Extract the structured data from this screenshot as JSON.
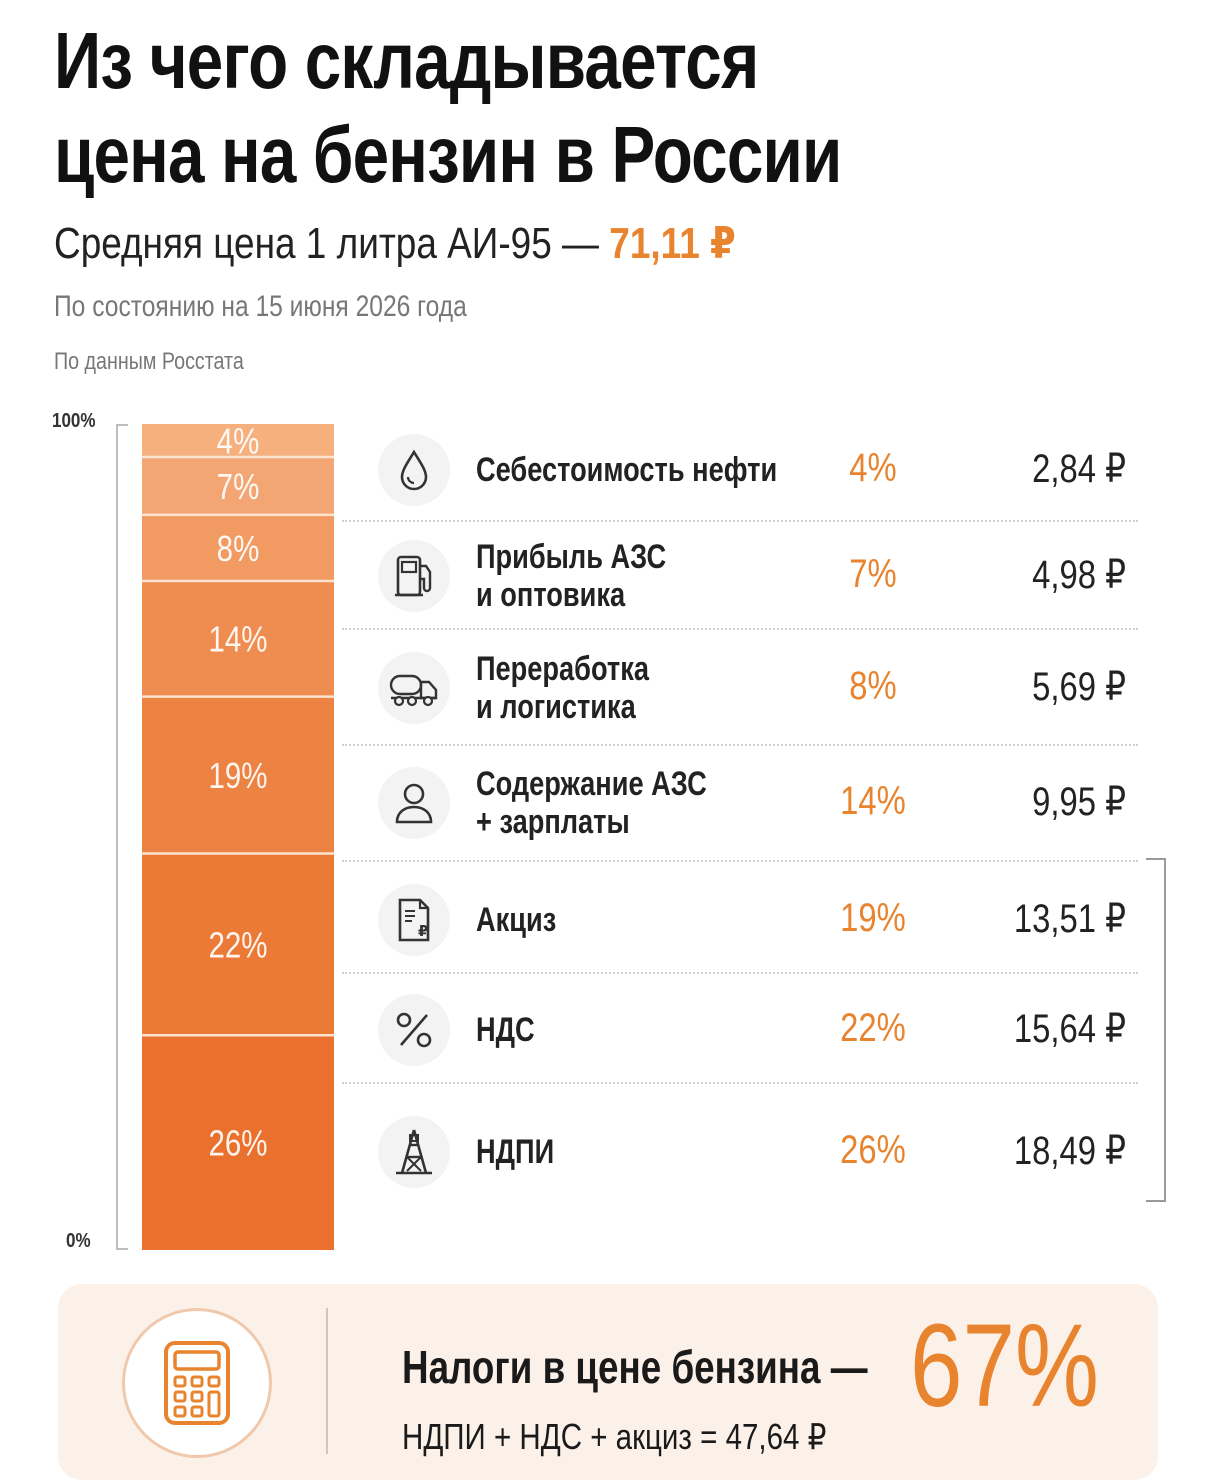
{
  "header": {
    "title_line1": "Из чего складывается",
    "title_line2": "цена на бензин в России",
    "subtitle_prefix": "Средняя цена 1 литра АИ-95 — ",
    "subtitle_price": "71,11 ₽",
    "date_note": "По состоянию на 15 июня 2026 года",
    "source_note": "По данным Росстата"
  },
  "chart_data": {
    "type": "bar",
    "stacked": true,
    "y_axis": {
      "top_label": "100%",
      "bottom_label": "0%",
      "ylim": [
        0,
        100
      ]
    },
    "segments_top_to_bottom": [
      {
        "label": "Себестоимость нефти",
        "percent": 4,
        "percent_label": "4%",
        "value": 2.84,
        "value_label": "2,84 ₽",
        "color": "#f5b07e",
        "icon": "drop-icon"
      },
      {
        "label": "Прибыль АЗС и оптовика",
        "percent": 7,
        "percent_label": "7%",
        "value": 4.98,
        "value_label": "4,98 ₽",
        "color": "#f3a673",
        "icon": "fuel-pump-icon"
      },
      {
        "label": "Переработка и логистика",
        "percent": 8,
        "percent_label": "8%",
        "value": 5.69,
        "value_label": "5,69 ₽",
        "color": "#f19b63",
        "icon": "tanker-truck-icon"
      },
      {
        "label": "Содержание АЗС + зарплаты",
        "percent": 14,
        "percent_label": "14%",
        "value": 9.95,
        "value_label": "9,95 ₽",
        "color": "#ef8d50",
        "icon": "person-icon"
      },
      {
        "label": "Акциз",
        "percent": 19,
        "percent_label": "19%",
        "value": 13.51,
        "value_label": "13,51 ₽",
        "color": "#ed8342",
        "icon": "document-ruble-icon"
      },
      {
        "label": "НДС",
        "percent": 22,
        "percent_label": "22%",
        "value": 15.64,
        "value_label": "15,64 ₽",
        "color": "#eb7a37",
        "icon": "percent-icon"
      },
      {
        "label": "НДПИ",
        "percent": 26,
        "percent_label": "26%",
        "value": 18.49,
        "value_label": "18,49 ₽",
        "color": "#e9712d",
        "icon": "oil-rig-icon"
      }
    ]
  },
  "rows": [
    {
      "line1": "Себестоимость нефти",
      "line2": ""
    },
    {
      "line1": "Прибыль АЗС",
      "line2": "и оптовика"
    },
    {
      "line1": "Переработка",
      "line2": "и логистика"
    },
    {
      "line1": "Содержание АЗС",
      "line2": "+ зарплаты"
    },
    {
      "line1": "Акциз",
      "line2": ""
    },
    {
      "line1": "НДС",
      "line2": ""
    },
    {
      "line1": "НДПИ",
      "line2": ""
    }
  ],
  "footer": {
    "headline": "Налоги в цене бензина —",
    "formula": "НДПИ + НДС + акциз = 47,64 ₽",
    "big_value": "67%",
    "icon": "calculator-icon"
  },
  "colors": {
    "accent": "#e8832e",
    "footer_bg": "#fcf1e9"
  }
}
